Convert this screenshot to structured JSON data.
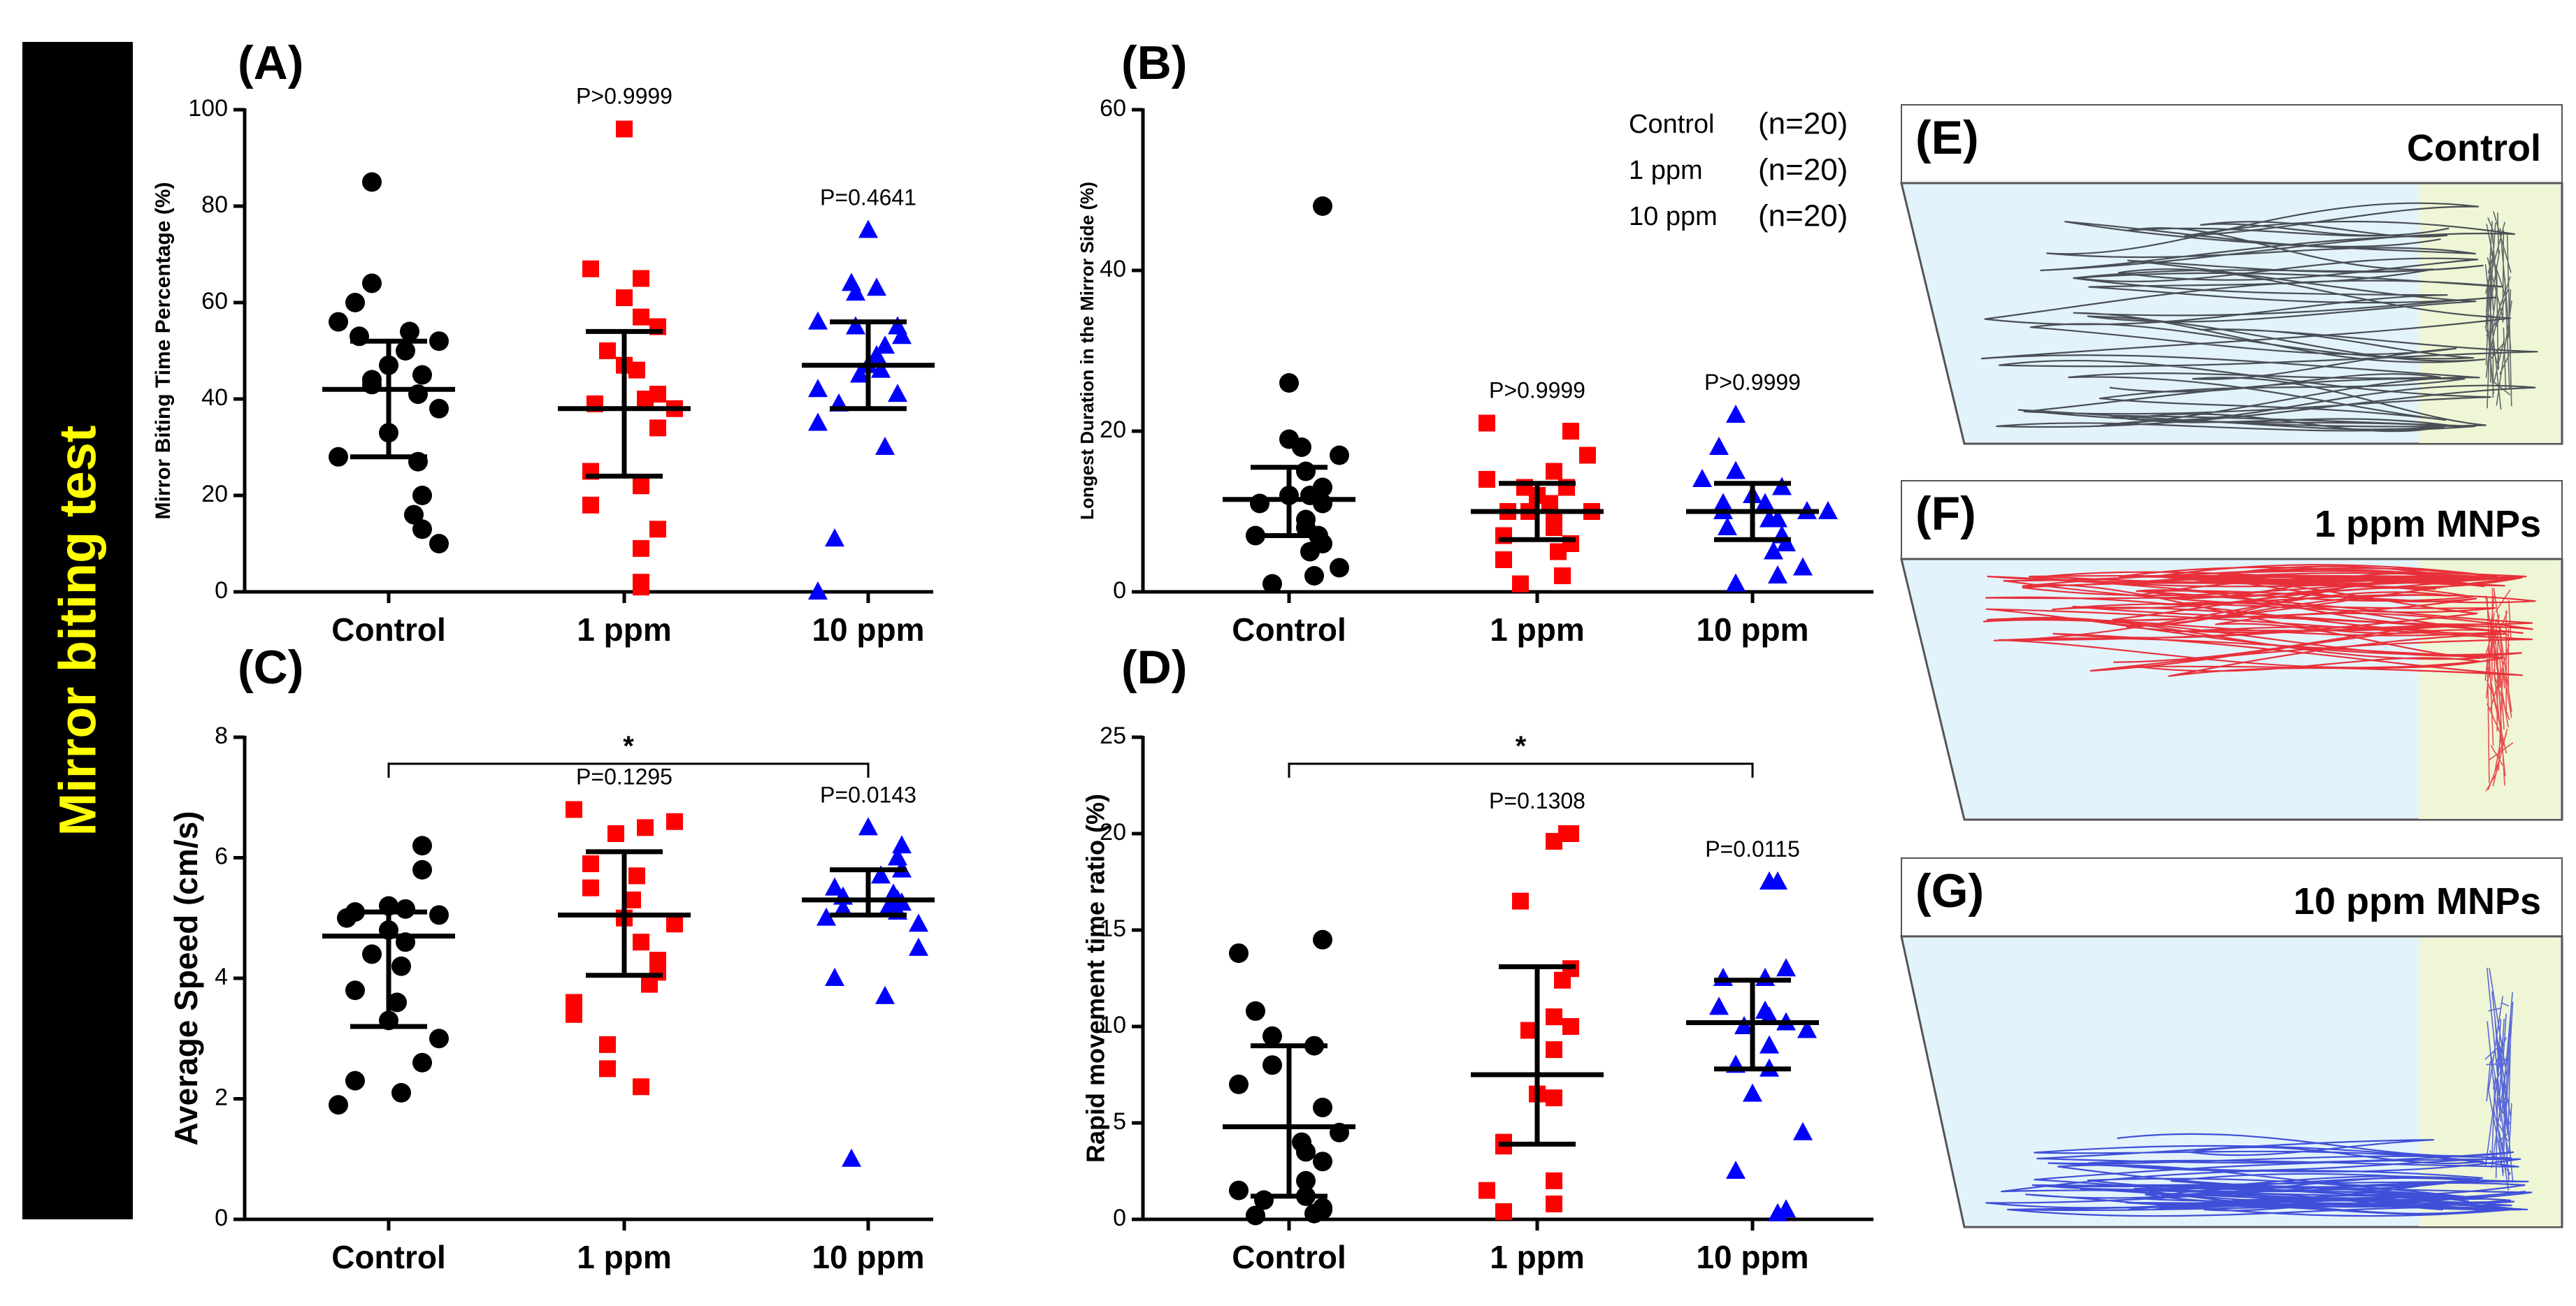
{
  "side_label": "Mirror biting test",
  "colors": {
    "control": "#000000",
    "ppm1": "#ff0000",
    "ppm10": "#0000ff",
    "banner_text": "#ffff00",
    "track_control": "#4a4f55",
    "track_1ppm": "#e8303a",
    "track_10ppm": "#3f4fd8",
    "tank_water": "#e3f3fc",
    "tank_mirror": "#eef6d6"
  },
  "chart_data": [
    {
      "panel": "(A)",
      "type": "scatter",
      "categories": [
        "Control",
        "1 ppm",
        "10 ppm"
      ],
      "ylabel": "Mirror Biting Time Percentage (%)",
      "ylim": [
        0,
        100
      ],
      "yticks": [
        0,
        20,
        40,
        60,
        80,
        100
      ],
      "series": [
        {
          "name": "Control",
          "marker": "circle",
          "color": "#000000",
          "values": [
            85,
            64,
            60,
            56,
            54,
            53,
            52,
            50,
            47,
            45,
            44,
            43,
            41,
            38,
            33,
            28,
            27,
            20,
            16,
            13,
            10
          ],
          "mean": 42,
          "sd": [
            28,
            52
          ]
        },
        {
          "name": "1 ppm",
          "marker": "square",
          "color": "#ff0000",
          "values": [
            96,
            67,
            65,
            61,
            57,
            55,
            50,
            47,
            46,
            41,
            40,
            39,
            38,
            34,
            25,
            22,
            18,
            13,
            9,
            2,
            1
          ],
          "mean": 38,
          "sd": [
            24,
            54
          ]
        },
        {
          "name": "10 ppm",
          "marker": "triangle",
          "color": "#0000ff",
          "values": [
            75,
            64,
            63,
            62,
            56,
            55,
            55,
            53,
            51,
            49,
            47,
            46,
            45,
            42,
            41,
            39,
            35,
            30,
            11,
            0
          ],
          "mean": 47,
          "sd": [
            38,
            56
          ]
        }
      ],
      "annotations": [
        {
          "category": "1 ppm",
          "text": "P>0.9999"
        },
        {
          "category": "10 ppm",
          "text": "P=0.4641"
        }
      ]
    },
    {
      "panel": "(B)",
      "type": "scatter",
      "categories": [
        "Control",
        "1 ppm",
        "10 ppm"
      ],
      "ylabel": "Longest  Duration in the Mirror Side (%)",
      "ylim": [
        0,
        60
      ],
      "yticks": [
        0,
        20,
        40,
        60
      ],
      "legend": [
        {
          "label": "Control",
          "n": "(n=20)"
        },
        {
          "label": "1 ppm",
          "n": "(n=20)"
        },
        {
          "label": "10 ppm",
          "n": "(n=20)"
        }
      ],
      "series": [
        {
          "name": "Control",
          "marker": "circle",
          "color": "#000000",
          "values": [
            48,
            26,
            19,
            18,
            17,
            15,
            13,
            12,
            12,
            11,
            11,
            9,
            8,
            7,
            7,
            6,
            5,
            3,
            2,
            1
          ],
          "mean": 11.5,
          "sd": [
            7,
            15.5
          ]
        },
        {
          "name": "1 ppm",
          "marker": "square",
          "color": "#ff0000",
          "values": [
            21,
            20,
            17,
            15,
            14,
            13,
            13,
            12,
            11,
            10,
            10,
            10,
            9,
            8,
            7,
            6,
            5,
            4,
            2,
            1
          ],
          "mean": 10,
          "sd": [
            6.5,
            13.5
          ]
        },
        {
          "name": "10 ppm",
          "marker": "triangle",
          "color": "#0000ff",
          "values": [
            22,
            18,
            15,
            14,
            13,
            12,
            11,
            11,
            10,
            10,
            10,
            9,
            9,
            8,
            7,
            6,
            5,
            3,
            2,
            1
          ],
          "mean": 10,
          "sd": [
            6.5,
            13.5
          ]
        }
      ],
      "annotations": [
        {
          "category": "1 ppm",
          "text": "P>0.9999"
        },
        {
          "category": "10 ppm",
          "text": "P>0.9999"
        }
      ]
    },
    {
      "panel": "(C)",
      "type": "scatter",
      "categories": [
        "Control",
        "1 ppm",
        "10 ppm"
      ],
      "ylabel": "Average Speed (cm/s)",
      "ylim": [
        0,
        8
      ],
      "yticks": [
        0,
        2,
        4,
        6,
        8
      ],
      "series": [
        {
          "name": "Control",
          "marker": "circle",
          "color": "#000000",
          "values": [
            6.2,
            5.8,
            5.2,
            5.15,
            5.1,
            5.05,
            5.0,
            4.8,
            4.6,
            4.4,
            4.2,
            3.8,
            3.6,
            3.3,
            3.0,
            2.6,
            2.3,
            2.1,
            1.9
          ],
          "mean": 4.7,
          "sd": [
            3.2,
            5.1
          ]
        },
        {
          "name": "1 ppm",
          "marker": "square",
          "color": "#ff0000",
          "values": [
            6.8,
            6.6,
            6.5,
            6.4,
            5.9,
            5.7,
            5.5,
            5.3,
            5.0,
            4.9,
            4.6,
            4.3,
            4.1,
            3.9,
            3.6,
            3.4,
            2.9,
            2.5,
            2.2
          ],
          "mean": 5.05,
          "sd": [
            4.05,
            6.1
          ]
        },
        {
          "name": "10 ppm",
          "marker": "triangle",
          "color": "#0000ff",
          "values": [
            6.5,
            6.2,
            6.0,
            5.8,
            5.7,
            5.5,
            5.4,
            5.35,
            5.3,
            5.25,
            5.2,
            5.15,
            5.1,
            5.0,
            4.9,
            4.5,
            4.0,
            3.7,
            1.0
          ],
          "mean": 5.3,
          "sd": [
            5.05,
            5.8
          ]
        }
      ],
      "annotations": [
        {
          "category": "1 ppm",
          "text": "P=0.1295"
        },
        {
          "category": "10 ppm",
          "text": "P=0.0143"
        }
      ],
      "significance": {
        "from": "Control",
        "to": "10 ppm",
        "label": "*"
      }
    },
    {
      "panel": "(D)",
      "type": "scatter",
      "categories": [
        "Control",
        "1 ppm",
        "10 ppm"
      ],
      "ylabel": "Rapid movement time ratio (%)",
      "ylim": [
        0,
        25
      ],
      "yticks": [
        0,
        5,
        10,
        15,
        20,
        25
      ],
      "series": [
        {
          "name": "Control",
          "marker": "circle",
          "color": "#000000",
          "values": [
            14.5,
            13.8,
            10.8,
            9.5,
            9.0,
            8.0,
            7.0,
            5.8,
            4.5,
            4.0,
            3.5,
            3.0,
            2.0,
            1.5,
            1.2,
            1.0,
            0.6,
            0.5,
            0.3,
            0.2
          ],
          "mean": 4.8,
          "sd": [
            1.2,
            9.0
          ]
        },
        {
          "name": "1 ppm",
          "marker": "square",
          "color": "#ff0000",
          "values": [
            20.0,
            20.0,
            19.6,
            16.5,
            13.0,
            12.4,
            10.5,
            10.0,
            9.8,
            8.8,
            6.5,
            6.3,
            4.0,
            3.8,
            2.0,
            1.5,
            0.8,
            0.4
          ],
          "mean": 7.5,
          "sd": [
            3.9,
            13.1
          ]
        },
        {
          "name": "10 ppm",
          "marker": "triangle",
          "color": "#0000ff",
          "values": [
            17.5,
            17.5,
            13.0,
            12.5,
            12.5,
            11.0,
            10.8,
            10.5,
            10.2,
            10.0,
            9.8,
            9.0,
            8.0,
            7.8,
            6.5,
            4.5,
            2.5,
            0.5,
            0.3
          ],
          "mean": 10.2,
          "sd": [
            7.8,
            12.4
          ]
        }
      ],
      "annotations": [
        {
          "category": "1 ppm",
          "text": "P=0.1308"
        },
        {
          "category": "10 ppm",
          "text": "P=0.0115"
        }
      ],
      "significance": {
        "from": "Control",
        "to": "10 ppm",
        "label": "*"
      }
    }
  ],
  "trajectories": [
    {
      "panel": "(E)",
      "title": "Control",
      "color_key": "track_control"
    },
    {
      "panel": "(F)",
      "title": "1 ppm MNPs",
      "color_key": "track_1ppm"
    },
    {
      "panel": "(G)",
      "title": "10 ppm MNPs",
      "color_key": "track_10ppm"
    }
  ]
}
